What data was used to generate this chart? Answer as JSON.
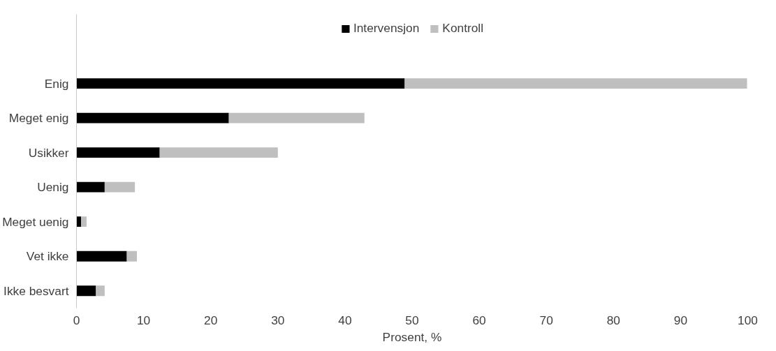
{
  "chart_data": {
    "type": "bar",
    "orientation": "horizontal",
    "stacked": true,
    "xlabel": "Prosent, %",
    "categories": [
      "Enig",
      "Meget enig",
      "Usikker",
      "Uenig",
      "Meget uenig",
      "Vet ikke",
      "Ikke besvart"
    ],
    "series": [
      {
        "name": "Intervensjon",
        "color": "#000000",
        "values": [
          48.9,
          22.7,
          12.4,
          4.2,
          0.7,
          7.5,
          2.9
        ]
      },
      {
        "name": "Kontroll",
        "color": "#bfbfbf",
        "values": [
          51.0,
          20.2,
          17.6,
          4.5,
          0.8,
          1.5,
          1.3
        ]
      }
    ],
    "xlim": [
      0,
      100
    ],
    "xticks": [
      0,
      10,
      20,
      30,
      40,
      50,
      60,
      70,
      80,
      90,
      100
    ],
    "grid": false,
    "legend": "top"
  }
}
